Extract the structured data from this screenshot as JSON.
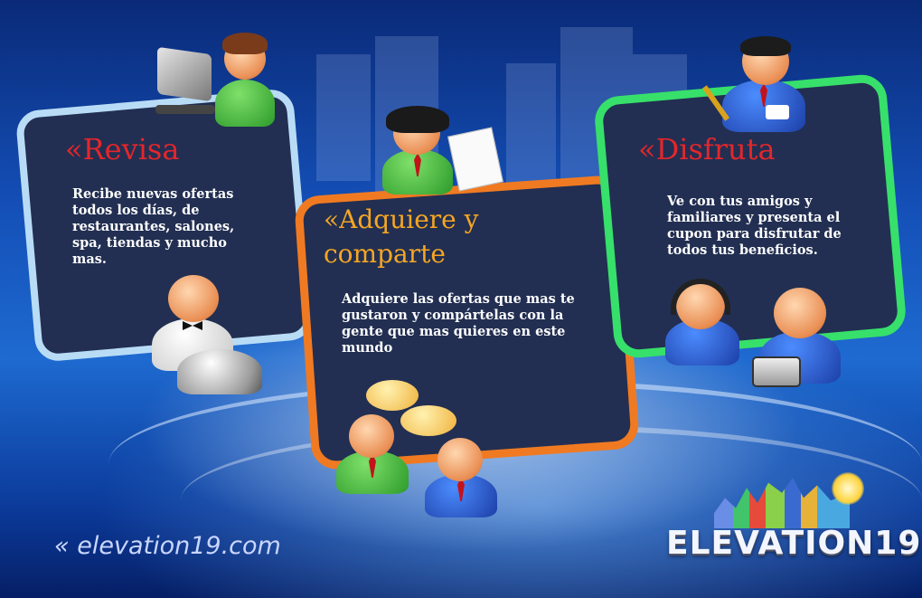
{
  "cards": {
    "revisa": {
      "title": "«Revisa",
      "text": "Recibe nuevas ofertas todos los días, de restaurantes, salones, spa, tiendas y mucho mas."
    },
    "adquiere": {
      "title_line1": "«Adquiere y",
      "title_line2": "comparte",
      "text": "Adquiere las ofertas que mas te gustaron y compártelas con la gente que mas quieres en este mundo"
    },
    "disfruta": {
      "title": "«Disfruta",
      "text": "Ve con tus amigos y familiares y presenta el cupon para disfrutar de todos tus beneficios."
    }
  },
  "footer": {
    "link": "« elevation19.com",
    "logo": "ELEVATION19"
  },
  "colors": {
    "revisa_border": "#b9dcf6",
    "revisa_title": "#e4262b",
    "adquiere_border": "#f07a22",
    "adquiere_title": "#f5a623",
    "disfruta_border": "#37e06a",
    "disfruta_title": "#e4262b"
  }
}
